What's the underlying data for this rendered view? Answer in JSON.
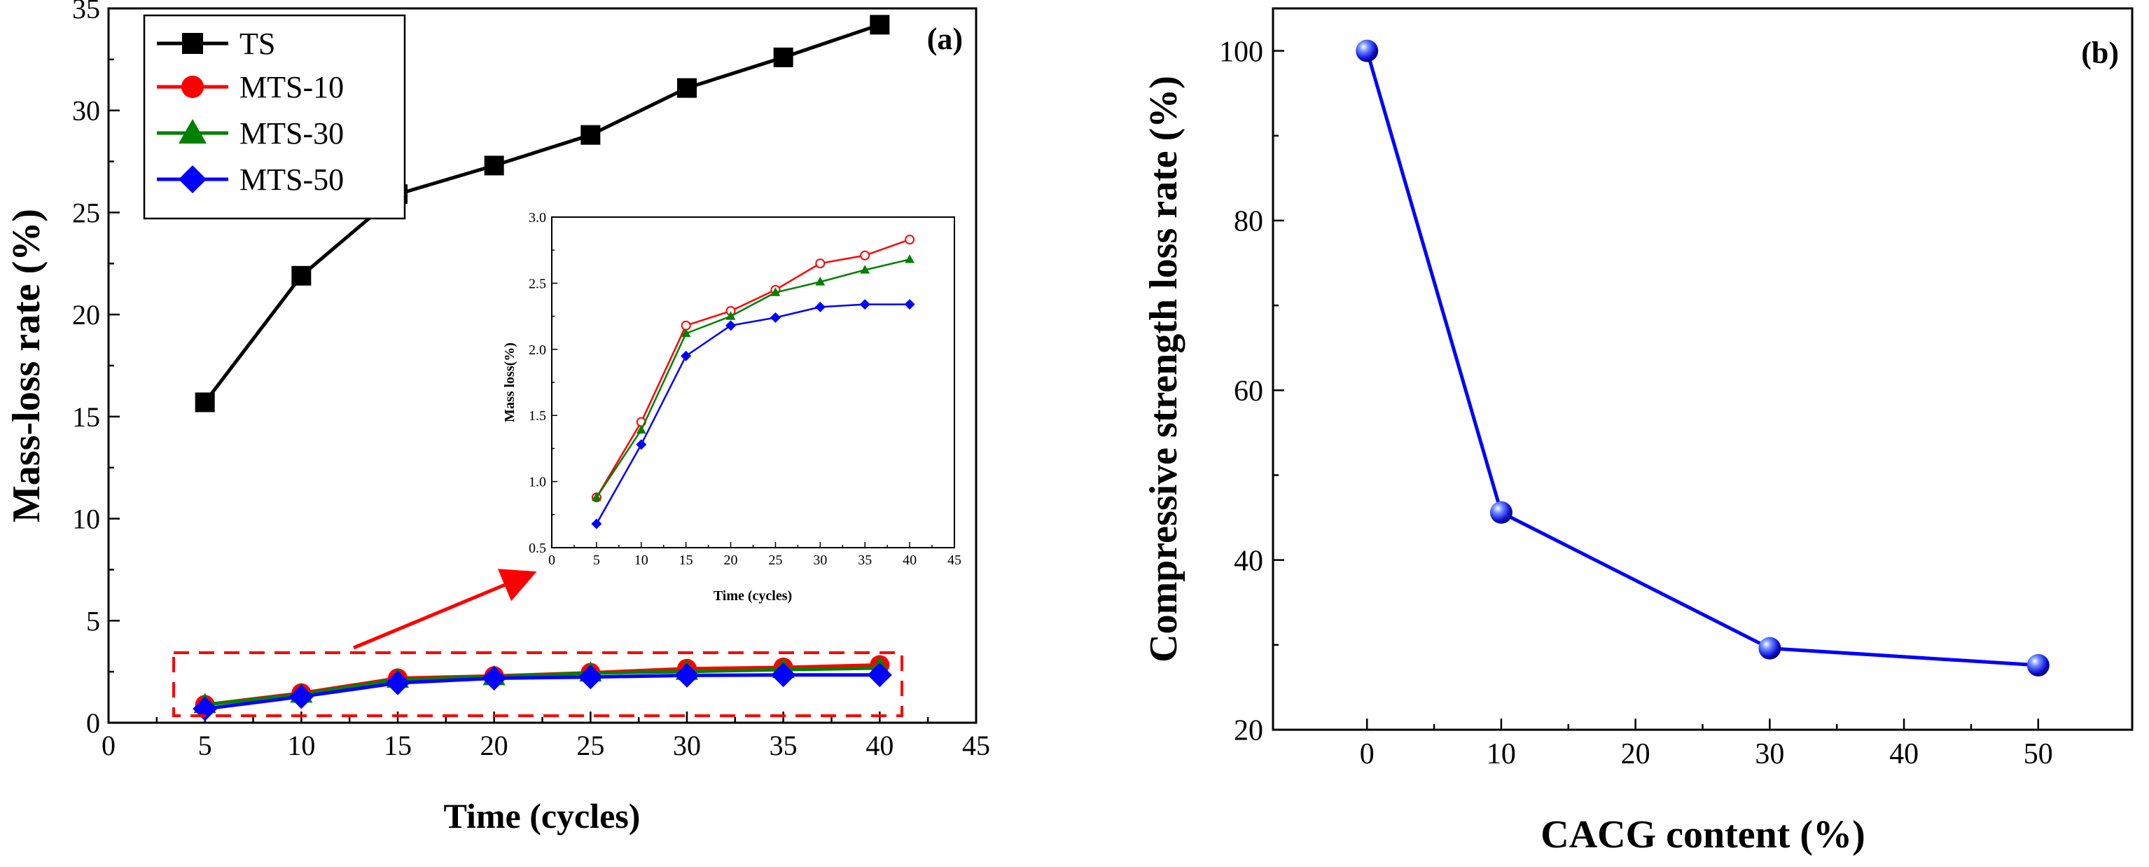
{
  "chart_data": [
    {
      "type": "line",
      "panel_label": "(a)",
      "xlabel": "Time (cycles)",
      "ylabel": "Mass-loss rate (%)",
      "xlim": [
        0,
        45
      ],
      "ylim": [
        0,
        35
      ],
      "xticks": [
        0,
        5,
        10,
        15,
        20,
        25,
        30,
        35,
        40,
        45
      ],
      "yticks": [
        0,
        5,
        10,
        15,
        20,
        25,
        30,
        35
      ],
      "legend_position": "top-left",
      "series": [
        {
          "name": "TS",
          "color": "#000000",
          "marker": "square",
          "x": [
            5,
            10,
            15,
            20,
            25,
            30,
            35,
            40
          ],
          "y": [
            15.7,
            21.9,
            25.9,
            27.3,
            28.8,
            31.1,
            32.6,
            34.2
          ]
        },
        {
          "name": "MTS-10",
          "color": "#ff0000",
          "marker": "circle",
          "x": [
            5,
            10,
            15,
            20,
            25,
            30,
            35,
            40
          ],
          "y": [
            0.88,
            1.45,
            2.18,
            2.29,
            2.45,
            2.65,
            2.71,
            2.83
          ]
        },
        {
          "name": "MTS-30",
          "color": "#008000",
          "marker": "triangle",
          "x": [
            5,
            10,
            15,
            20,
            25,
            30,
            35,
            40
          ],
          "y": [
            0.88,
            1.39,
            2.12,
            2.25,
            2.43,
            2.51,
            2.6,
            2.68
          ]
        },
        {
          "name": "MTS-50",
          "color": "#0000ff",
          "marker": "diamond",
          "x": [
            5,
            10,
            15,
            20,
            25,
            30,
            35,
            40
          ],
          "y": [
            0.68,
            1.28,
            1.95,
            2.18,
            2.24,
            2.32,
            2.34,
            2.34
          ]
        }
      ],
      "inset": {
        "xlabel": "Time (cycles)",
        "ylabel": "Mass loss(%)",
        "xlim": [
          0,
          45
        ],
        "ylim": [
          0.5,
          3.0
        ],
        "xticks": [
          0,
          5,
          10,
          15,
          20,
          25,
          30,
          35,
          40,
          45
        ],
        "yticks": [
          0.5,
          1.0,
          1.5,
          2.0,
          2.5,
          3.0
        ],
        "ytick_labels": [
          "0.5",
          "1.0",
          "1.5",
          "2.0",
          "2.5",
          "3.0"
        ],
        "series_names": [
          "MTS-10",
          "MTS-30",
          "MTS-50"
        ],
        "highlight_box": {
          "x_range": [
            3.5,
            41.7
          ],
          "y_range": [
            0.3,
            3.5
          ]
        }
      }
    },
    {
      "type": "line",
      "panel_label": "(b)",
      "xlabel": "CACG content (%)",
      "ylabel": "Compressive strength loss rate (%)",
      "xlim": [
        -7,
        57
      ],
      "ylim": [
        20,
        105
      ],
      "xticks": [
        0,
        10,
        20,
        30,
        40,
        50
      ],
      "yticks": [
        20,
        40,
        60,
        80,
        100
      ],
      "series": [
        {
          "name": "Compressive strength loss rate",
          "color": "#0000ff",
          "marker": "sphere",
          "x": [
            0,
            10,
            30,
            50
          ],
          "y": [
            100,
            45.6,
            29.6,
            27.6
          ]
        }
      ]
    }
  ]
}
